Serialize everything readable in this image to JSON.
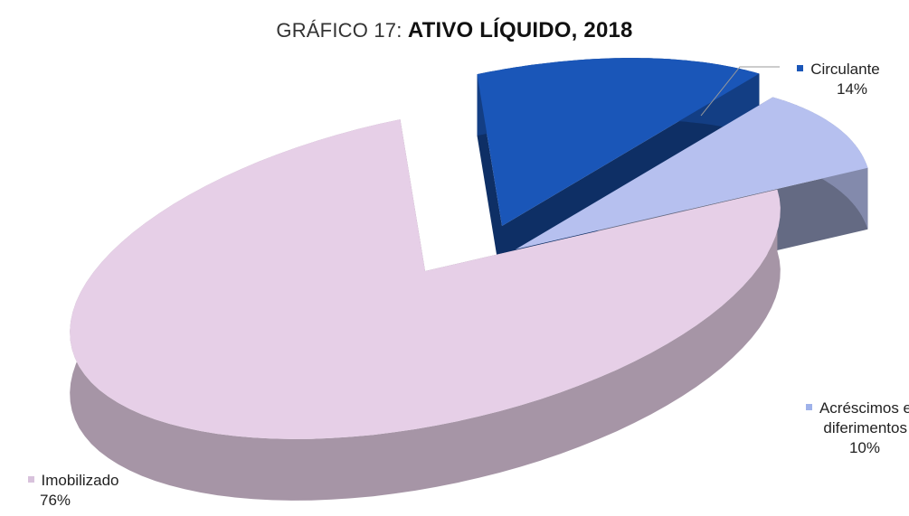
{
  "chart_data": {
    "type": "pie",
    "title_prefix": "GRÁFICO 17:",
    "title_main": "ATIVO LÍQUIDO, 2018",
    "slices": [
      {
        "name": "Imobilizado",
        "pct_label": "76%",
        "value": 76,
        "color": "#e6cfe7"
      },
      {
        "name": "Circulante",
        "pct_label": "14%",
        "value": 14,
        "color": "#1a56b8"
      },
      {
        "name": "Acréscimos e diferimentos",
        "name_lines": [
          "Acréscimos e",
          "diferimentos"
        ],
        "pct_label": "10%",
        "value": 10,
        "color": "#b6c0ef"
      }
    ],
    "legend_placement": "data labels beside slices"
  }
}
